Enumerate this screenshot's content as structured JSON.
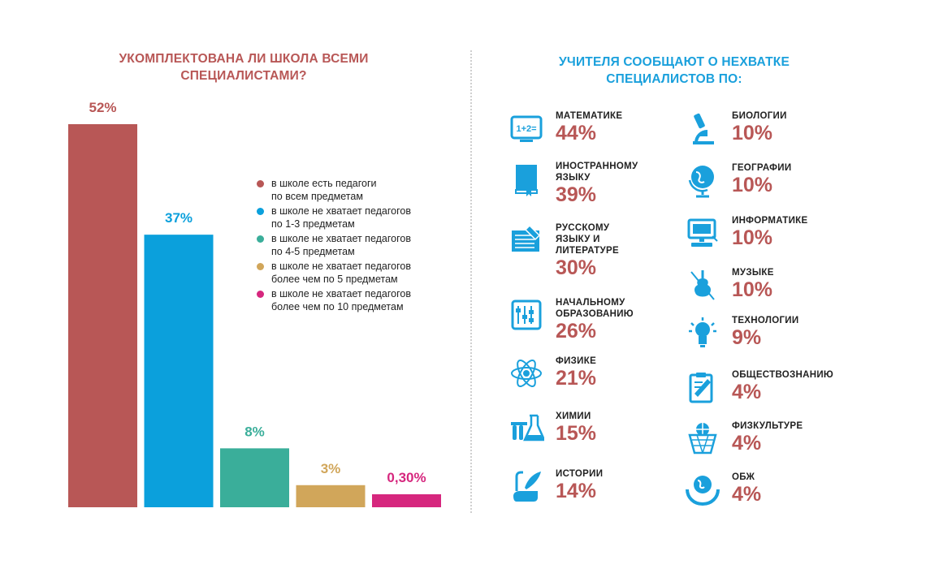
{
  "left_title_line1": "УКОМПЛЕКТОВАНА ЛИ ШКОЛА ВСЕМИ",
  "left_title_line2": "СПЕЦИАЛИСТАМИ?",
  "right_title_line1": "УЧИТЕЛЯ СООБЩАЮТ О НЕХВАТКЕ",
  "right_title_line2": "СПЕЦИАЛИСТОВ ПО:",
  "colors": {
    "red": "#b85756",
    "blue": "#0ba0dc",
    "green": "#3aae9a",
    "gold": "#d1a65a",
    "magenta": "#d6277e",
    "icon_blue": "#1aa0dc"
  },
  "chart_data": {
    "type": "bar",
    "title": "УКОМПЛЕКТОВАНА ЛИ ШКОЛА ВСЕМИ СПЕЦИАЛИСТАМИ?",
    "categories": [
      "в школе есть педагоги по всем предметам",
      "в школе не хватает педагогов по 1-3 предметам",
      "в школе не хватает педагогов по 4-5 предметам",
      "в школе не хватает педагогов более чем по 5 предметам",
      "в школе не хватает педагогов более чем по 10 предметам"
    ],
    "values": [
      52,
      37,
      8,
      3,
      0.3
    ],
    "labels": [
      "52%",
      "37%",
      "8%",
      "3%",
      "0,30%"
    ],
    "colors": [
      "#b85756",
      "#0ba0dc",
      "#3aae9a",
      "#d1a65a",
      "#d6277e"
    ],
    "ylim": [
      0,
      52
    ],
    "xlabel": "",
    "ylabel": "",
    "legend": [
      {
        "line1": "в школе есть педагоги",
        "line2": "по всем предметам"
      },
      {
        "line1": "в школе не хватает педагогов",
        "line2": "по 1-3 предметам"
      },
      {
        "line1": "в школе не хватает педагогов",
        "line2": "по 4-5 предметам"
      },
      {
        "line1": "в школе не хватает педагогов",
        "line2": "более чем по 5 предметам"
      },
      {
        "line1": "в школе не хватает педагогов",
        "line2": "более чем по 10 предметам"
      }
    ]
  },
  "subjects_left": [
    {
      "lines": [
        "МАТЕМАТИКЕ"
      ],
      "pct": "44%",
      "icon": "math-board-icon"
    },
    {
      "lines": [
        "ИНОСТРАННОМУ",
        "ЯЗЫКУ"
      ],
      "pct": "39%",
      "icon": "book-icon"
    },
    {
      "lines": [
        "РУССКОМУ",
        "ЯЗЫКУ И",
        "ЛИТЕРАТУРЕ"
      ],
      "pct": "30%",
      "icon": "notebook-pen-icon"
    },
    {
      "lines": [
        "НАЧАЛЬНОМУ",
        "ОБРАЗОВАНИЮ"
      ],
      "pct": "26%",
      "icon": "abacus-icon"
    },
    {
      "lines": [
        "ФИЗИКЕ"
      ],
      "pct": "21%",
      "icon": "atom-icon"
    },
    {
      "lines": [
        "ХИМИИ"
      ],
      "pct": "15%",
      "icon": "flask-icon"
    },
    {
      "lines": [
        "ИСТОРИИ"
      ],
      "pct": "14%",
      "icon": "scroll-quill-icon"
    }
  ],
  "subjects_right": [
    {
      "lines": [
        "БИОЛОГИИ"
      ],
      "pct": "10%",
      "icon": "microscope-icon"
    },
    {
      "lines": [
        "ГЕОГРАФИИ"
      ],
      "pct": "10%",
      "icon": "globe-icon"
    },
    {
      "lines": [
        "ИНФОРМАТИКЕ"
      ],
      "pct": "10%",
      "icon": "computer-icon"
    },
    {
      "lines": [
        "МУЗЫКЕ"
      ],
      "pct": "10%",
      "icon": "violin-icon"
    },
    {
      "lines": [
        "ТЕХНОЛОГИИ"
      ],
      "pct": "9%",
      "icon": "lightbulb-icon"
    },
    {
      "lines": [
        "ОБЩЕСТВОЗНАНИЮ"
      ],
      "pct": "4%",
      "icon": "clipboard-pen-icon"
    },
    {
      "lines": [
        "ФИЗКУЛЬТУРЕ"
      ],
      "pct": "4%",
      "icon": "basketball-hoop-icon"
    },
    {
      "lines": [
        "ОБЖ"
      ],
      "pct": "4%",
      "icon": "earth-hands-icon"
    }
  ]
}
